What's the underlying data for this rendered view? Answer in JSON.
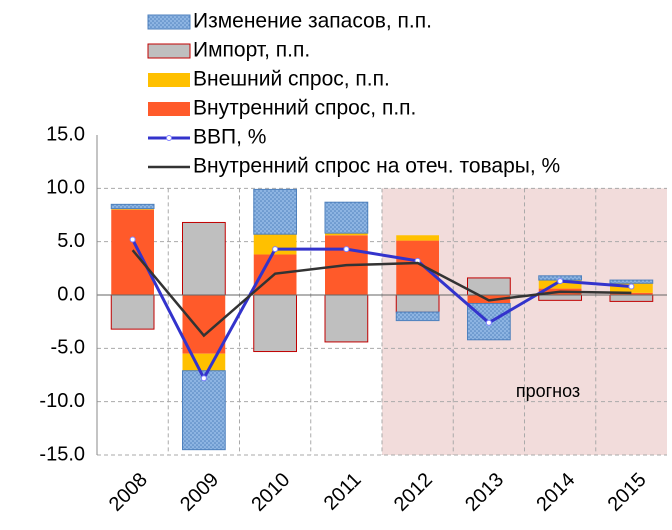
{
  "chart_data": {
    "type": "bar",
    "categories": [
      "2008",
      "2009",
      "2010",
      "2011",
      "2012",
      "2013",
      "2014",
      "2015"
    ],
    "series": [
      {
        "name": "Изменение запасов, п.п.",
        "type": "bar",
        "color": "#8db4e2",
        "values": [
          0.4,
          -7.4,
          4.2,
          2.9,
          -0.8,
          -3.4,
          0.4,
          0.3
        ]
      },
      {
        "name": "Импорт, п.п.",
        "type": "bar",
        "color": "#bfbfbf",
        "values": [
          -3.2,
          6.8,
          -5.3,
          -4.4,
          -1.6,
          1.6,
          -0.5,
          -0.6
        ]
      },
      {
        "name": "Внешний спрос, п.п.",
        "type": "bar",
        "color": "#ffc000",
        "values": [
          0.1,
          -1.6,
          1.9,
          0.2,
          0.5,
          0.0,
          0.8,
          0.9
        ]
      },
      {
        "name": "Внутренний спрос, п.п.",
        "type": "bar",
        "color": "#ff5a2a",
        "values": [
          8.0,
          -5.5,
          3.8,
          5.6,
          5.1,
          -0.8,
          0.6,
          0.2
        ]
      },
      {
        "name": "ВВП, %",
        "type": "line",
        "color": "#3333cc",
        "values": [
          5.2,
          -7.8,
          4.3,
          4.3,
          3.2,
          -2.6,
          1.3,
          0.8
        ]
      },
      {
        "name": "Внутренний спрос на отеч. товары, %",
        "type": "line",
        "color": "#333333",
        "values": [
          4.2,
          -3.8,
          2.0,
          2.8,
          3.0,
          -0.5,
          0.3,
          0.2
        ]
      }
    ],
    "ylim": [
      -15,
      15
    ],
    "yticks": [
      {
        "value": 15,
        "label": "15.0"
      },
      {
        "value": 10,
        "label": "10.0"
      },
      {
        "value": 5,
        "label": "5.0"
      },
      {
        "value": 0,
        "label": "0.0"
      },
      {
        "value": -5,
        "label": "-5.0"
      },
      {
        "value": -10,
        "label": "-10.0"
      },
      {
        "value": -15,
        "label": "-15.0"
      }
    ],
    "grid": true,
    "shaded_from": "2012",
    "annotation": "прогноз"
  }
}
